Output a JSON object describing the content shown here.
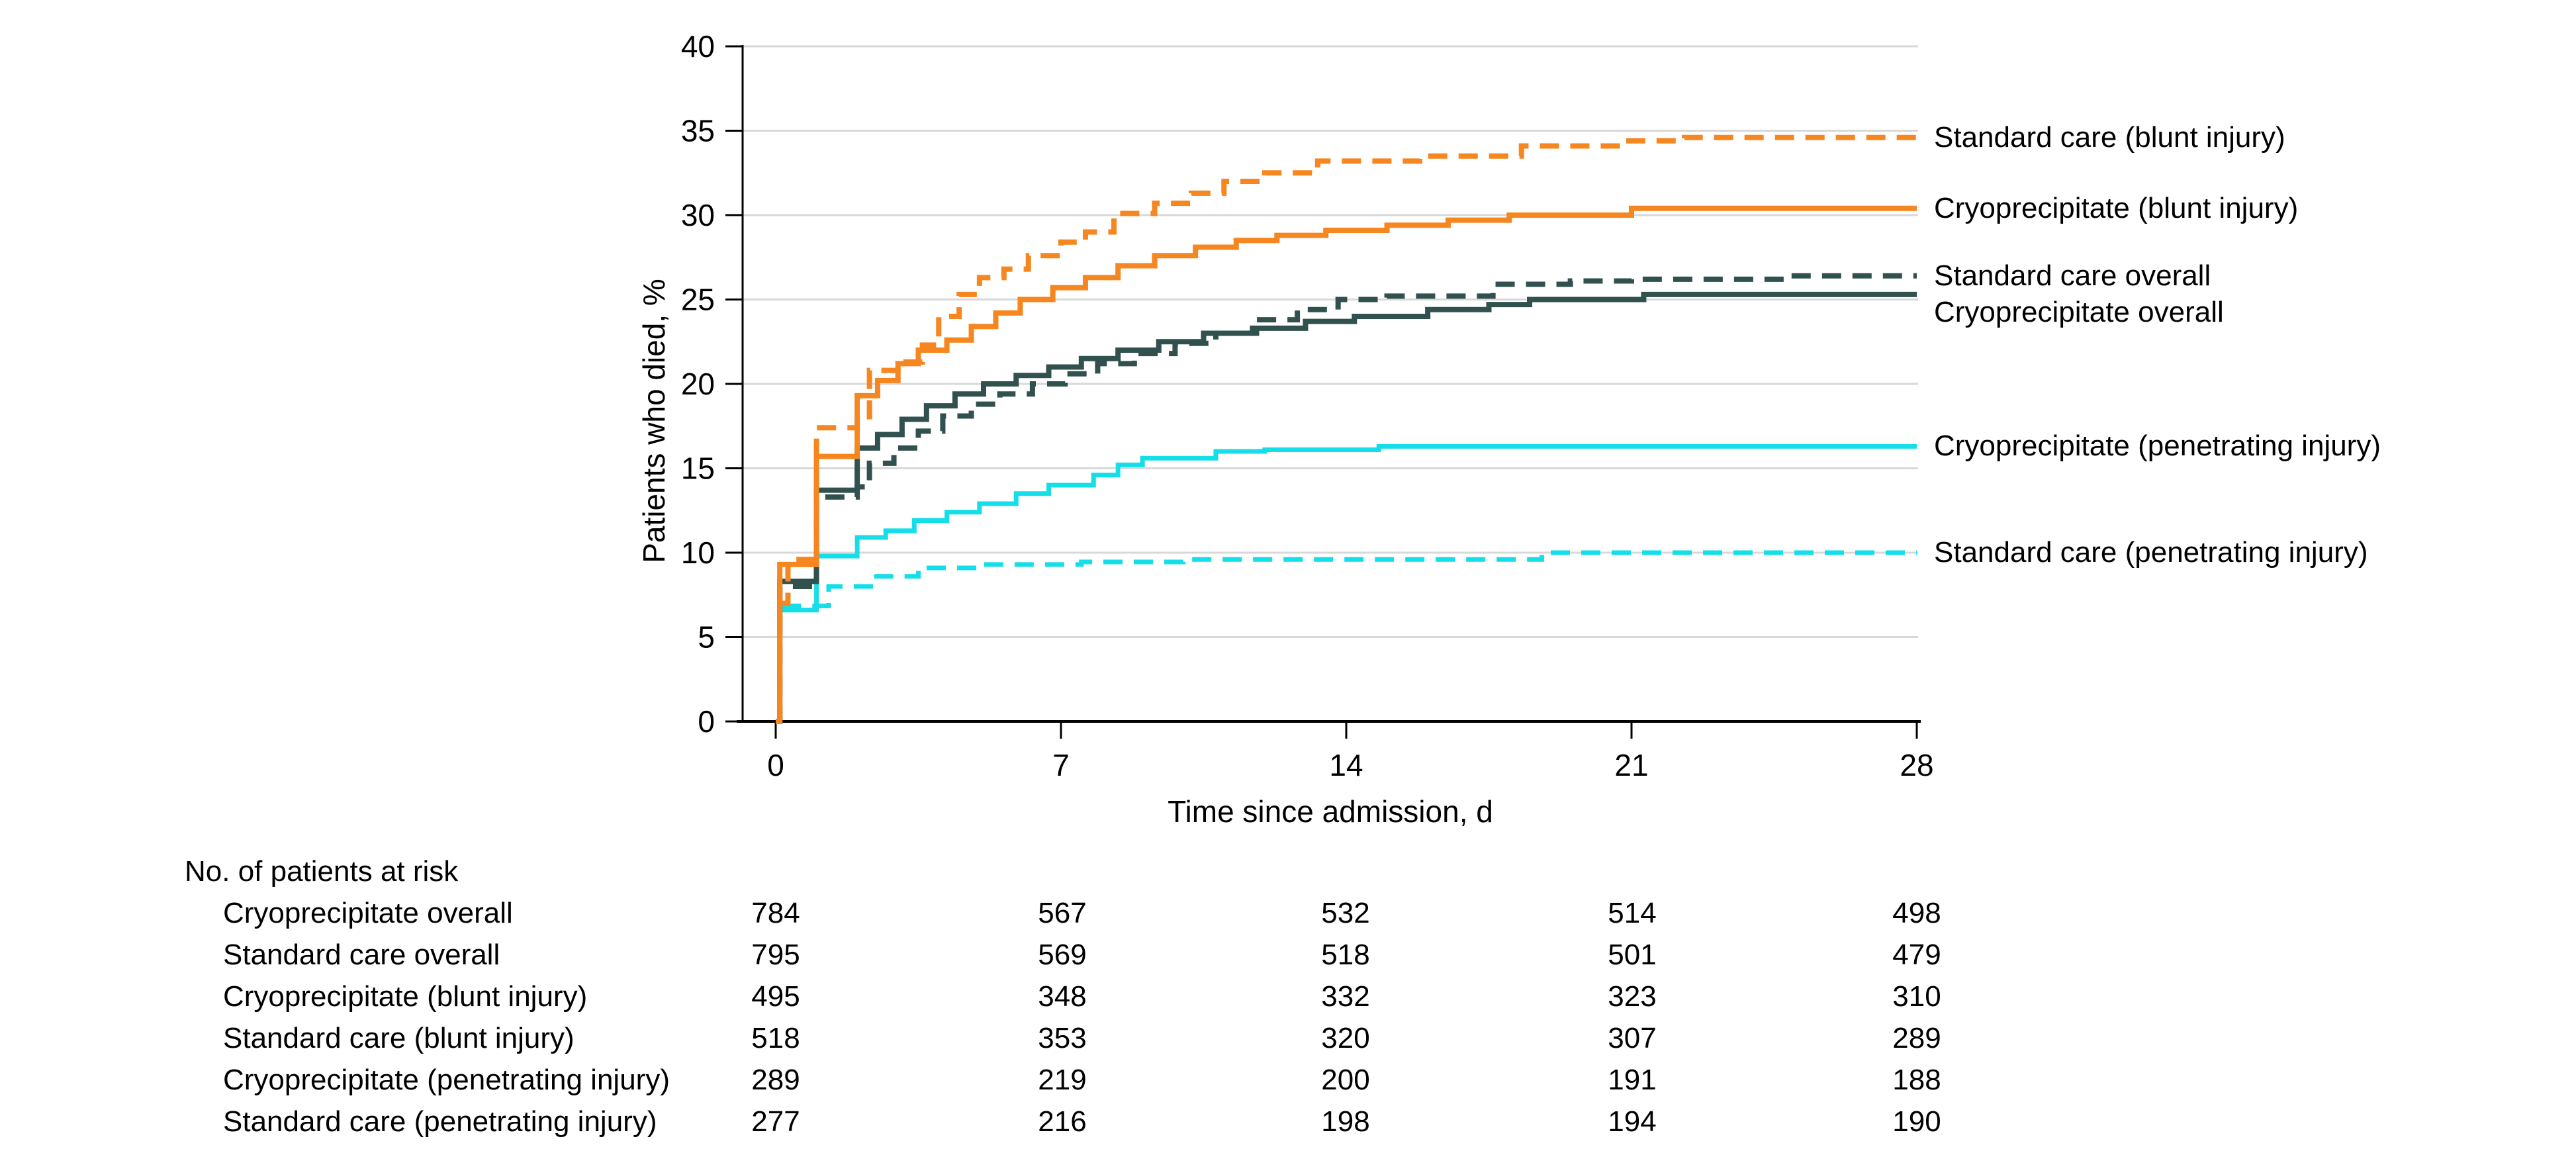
{
  "style": {
    "orange": "#F6861F",
    "dark_teal": "#31514E",
    "cyan": "#14DEE8",
    "grid_color": "#D8D8D8",
    "axis_color": "#000000",
    "text_color": "#000000",
    "background": "#FFFFFF"
  },
  "chart_data": {
    "type": "line",
    "subtype": "step-cumulative-incidence",
    "title": "",
    "xlabel": "Time since admission, d",
    "ylabel": "Patients who died, %",
    "xlim": [
      0,
      28
    ],
    "ylim": [
      0,
      40
    ],
    "xticks": [
      0,
      7,
      14,
      21,
      28
    ],
    "yticks": [
      0,
      5,
      10,
      15,
      20,
      25,
      30,
      35,
      40
    ],
    "grid": "horizontal",
    "legend_position": "right-of-plot",
    "series": [
      {
        "name": "Standard care (blunt injury)",
        "color": "#F6861F",
        "dash": "dashed",
        "points": [
          [
            0,
            0
          ],
          [
            0.1,
            7.0
          ],
          [
            0.3,
            9.6
          ],
          [
            1.0,
            17.4
          ],
          [
            2.0,
            17.8
          ],
          [
            2.3,
            20.8
          ],
          [
            3.0,
            21.3
          ],
          [
            3.6,
            22.3
          ],
          [
            4.0,
            24.0
          ],
          [
            4.5,
            25.3
          ],
          [
            5.0,
            26.3
          ],
          [
            5.6,
            26.8
          ],
          [
            6.2,
            27.6
          ],
          [
            7.0,
            28.4
          ],
          [
            7.6,
            29.0
          ],
          [
            8.3,
            30.1
          ],
          [
            9.3,
            30.7
          ],
          [
            10.2,
            31.3
          ],
          [
            11.0,
            32.0
          ],
          [
            12.0,
            32.5
          ],
          [
            13.3,
            33.2
          ],
          [
            15.8,
            33.5
          ],
          [
            18.3,
            34.1
          ],
          [
            20.8,
            34.4
          ],
          [
            22.3,
            34.6
          ],
          [
            28,
            34.6
          ]
        ]
      },
      {
        "name": "Cryoprecipitate (blunt injury)",
        "color": "#F6861F",
        "dash": "solid",
        "points": [
          [
            0,
            0
          ],
          [
            0.1,
            9.3
          ],
          [
            1.0,
            15.7
          ],
          [
            2.0,
            19.3
          ],
          [
            2.5,
            20.2
          ],
          [
            3.0,
            21.2
          ],
          [
            3.5,
            22.0
          ],
          [
            4.2,
            22.6
          ],
          [
            4.8,
            23.4
          ],
          [
            5.4,
            24.2
          ],
          [
            6.0,
            25.0
          ],
          [
            6.8,
            25.7
          ],
          [
            7.6,
            26.3
          ],
          [
            8.4,
            27.0
          ],
          [
            9.3,
            27.6
          ],
          [
            10.3,
            28.1
          ],
          [
            11.3,
            28.5
          ],
          [
            12.3,
            28.8
          ],
          [
            13.5,
            29.1
          ],
          [
            15.0,
            29.4
          ],
          [
            16.5,
            29.7
          ],
          [
            18.0,
            30.0
          ],
          [
            21.0,
            30.4
          ],
          [
            28,
            30.4
          ]
        ]
      },
      {
        "name": "Standard care overall",
        "color": "#31514E",
        "dash": "dashed",
        "points": [
          [
            0,
            0
          ],
          [
            0.1,
            8.0
          ],
          [
            1.0,
            13.3
          ],
          [
            2.0,
            13.9
          ],
          [
            2.3,
            15.3
          ],
          [
            2.9,
            16.2
          ],
          [
            3.5,
            17.2
          ],
          [
            4.1,
            18.1
          ],
          [
            4.8,
            18.8
          ],
          [
            5.5,
            19.4
          ],
          [
            6.3,
            20.0
          ],
          [
            7.1,
            20.6
          ],
          [
            7.9,
            21.2
          ],
          [
            8.8,
            21.8
          ],
          [
            9.8,
            22.4
          ],
          [
            10.8,
            23.0
          ],
          [
            11.8,
            23.8
          ],
          [
            12.8,
            24.4
          ],
          [
            13.8,
            25.0
          ],
          [
            15.0,
            25.2
          ],
          [
            17.6,
            25.9
          ],
          [
            19.5,
            26.1
          ],
          [
            21.0,
            26.2
          ],
          [
            24.8,
            26.4
          ],
          [
            28,
            26.4
          ]
        ]
      },
      {
        "name": "Cryoprecipitate overall",
        "color": "#31514E",
        "dash": "solid",
        "points": [
          [
            0,
            0
          ],
          [
            0.1,
            8.3
          ],
          [
            1.0,
            13.7
          ],
          [
            2.0,
            16.2
          ],
          [
            2.5,
            17.0
          ],
          [
            3.1,
            17.9
          ],
          [
            3.7,
            18.7
          ],
          [
            4.4,
            19.4
          ],
          [
            5.1,
            20.0
          ],
          [
            5.9,
            20.5
          ],
          [
            6.7,
            21.0
          ],
          [
            7.5,
            21.5
          ],
          [
            8.4,
            22.0
          ],
          [
            9.4,
            22.5
          ],
          [
            10.5,
            23.0
          ],
          [
            11.7,
            23.3
          ],
          [
            13.0,
            23.7
          ],
          [
            14.2,
            24.0
          ],
          [
            16.0,
            24.4
          ],
          [
            17.5,
            24.7
          ],
          [
            18.5,
            25.0
          ],
          [
            21.3,
            25.3
          ],
          [
            28,
            25.3
          ]
        ]
      },
      {
        "name": "Cryoprecipitate (penetrating injury)",
        "color": "#14DEE8",
        "dash": "solid",
        "points": [
          [
            0,
            0
          ],
          [
            0.1,
            6.6
          ],
          [
            1.0,
            9.8
          ],
          [
            2.0,
            10.9
          ],
          [
            2.7,
            11.3
          ],
          [
            3.4,
            11.9
          ],
          [
            4.2,
            12.4
          ],
          [
            5.0,
            12.9
          ],
          [
            5.9,
            13.5
          ],
          [
            6.7,
            14.0
          ],
          [
            7.8,
            14.6
          ],
          [
            8.4,
            15.2
          ],
          [
            9.0,
            15.6
          ],
          [
            10.8,
            16.0
          ],
          [
            12.0,
            16.1
          ],
          [
            14.8,
            16.3
          ],
          [
            28,
            16.3
          ]
        ]
      },
      {
        "name": "Standard care (penetrating injury)",
        "color": "#14DEE8",
        "dash": "dashed",
        "points": [
          [
            0,
            0
          ],
          [
            0.1,
            6.85
          ],
          [
            1.3,
            8.0
          ],
          [
            2.4,
            8.6
          ],
          [
            3.5,
            9.1
          ],
          [
            5.0,
            9.3
          ],
          [
            7.5,
            9.45
          ],
          [
            10.0,
            9.6
          ],
          [
            18.8,
            10.0
          ],
          [
            28,
            10.0
          ]
        ]
      }
    ]
  },
  "risk_table": {
    "title": "No. of patients at risk",
    "timepoints": [
      0,
      7,
      14,
      21,
      28
    ],
    "rows": [
      {
        "label": "Cryoprecipitate overall",
        "values": [
          784,
          567,
          532,
          514,
          498
        ]
      },
      {
        "label": "Standard care overall",
        "values": [
          795,
          569,
          518,
          501,
          479
        ]
      },
      {
        "label": "Cryoprecipitate (blunt injury)",
        "values": [
          495,
          348,
          332,
          323,
          310
        ]
      },
      {
        "label": "Standard care (blunt injury)",
        "values": [
          518,
          353,
          320,
          307,
          289
        ]
      },
      {
        "label": "Cryoprecipitate (penetrating injury)",
        "values": [
          289,
          219,
          200,
          191,
          188
        ]
      },
      {
        "label": "Standard care (penetrating injury)",
        "values": [
          277,
          216,
          198,
          194,
          190
        ]
      }
    ]
  }
}
